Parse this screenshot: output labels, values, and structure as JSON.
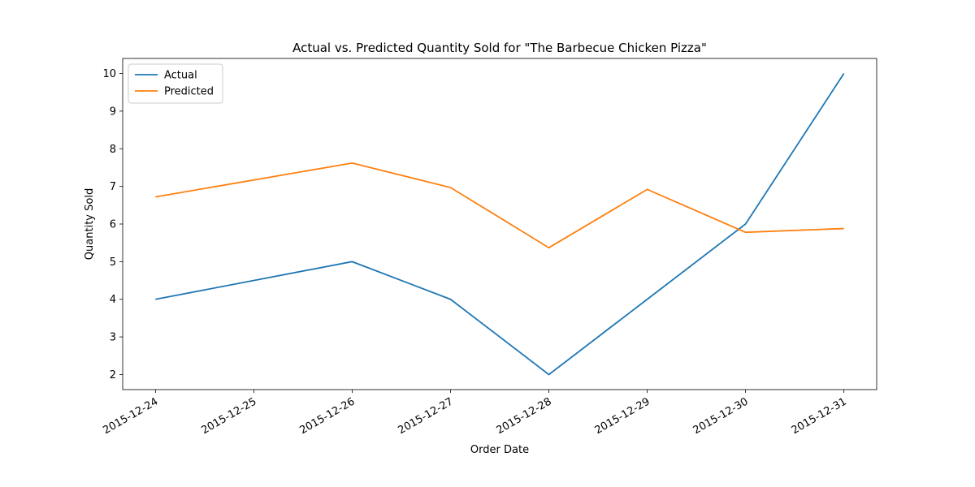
{
  "chart_data": {
    "type": "line",
    "title": "Actual vs. Predicted Quantity Sold for \"The Barbecue Chicken Pizza\"",
    "x_label": "Order Date",
    "y_label": "Quantity Sold",
    "x": [
      "2015-12-24",
      "2015-12-26",
      "2015-12-27",
      "2015-12-28",
      "2015-12-29",
      "2015-12-30",
      "2015-12-31"
    ],
    "series": [
      {
        "name": "Actual",
        "color": "#1f77b4",
        "values": [
          4,
          5,
          4,
          2,
          4,
          6,
          10
        ]
      },
      {
        "name": "Predicted",
        "color": "#ff7f0e",
        "values": [
          6.72,
          7.62,
          6.97,
          5.37,
          6.92,
          5.78,
          5.88
        ]
      }
    ],
    "xlim": [
      "2015-12-23T16:00",
      "2015-12-31T08:00"
    ],
    "xticks": [
      "2015-12-24",
      "2015-12-25",
      "2015-12-26",
      "2015-12-27",
      "2015-12-28",
      "2015-12-29",
      "2015-12-30",
      "2015-12-31"
    ],
    "ylim": [
      1.6,
      10.4
    ],
    "yticks": [
      2,
      3,
      4,
      5,
      6,
      7,
      8,
      9,
      10
    ],
    "grid": false,
    "legend": "upper left"
  }
}
